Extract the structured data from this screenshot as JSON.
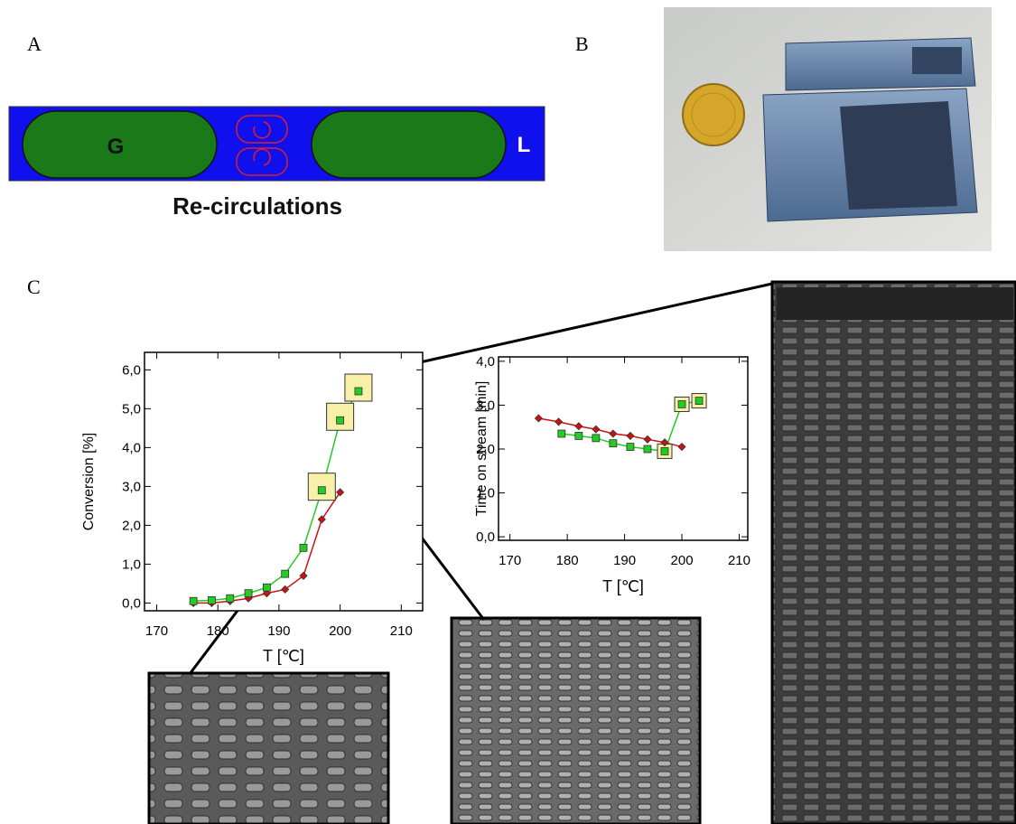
{
  "panels": {
    "a": {
      "label": "A",
      "gas": "G",
      "liquid": "L",
      "caption": "Re-circulations"
    },
    "b": {
      "label": "B"
    },
    "c": {
      "label": "C"
    }
  },
  "chart_data": [
    {
      "type": "line",
      "ylabel": "Conversion [%]",
      "xlabel": "T  [℃]",
      "xlim": [
        168,
        213.5
      ],
      "ylim": [
        -0.2,
        6.45
      ],
      "xticks": [
        170,
        180,
        190,
        200,
        210
      ],
      "yticks": [
        {
          "value": 0,
          "label": "0,0"
        },
        {
          "value": 1,
          "label": "1,0"
        },
        {
          "value": 2,
          "label": "2,0"
        },
        {
          "value": 3,
          "label": "3,0"
        },
        {
          "value": 4,
          "label": "4,0"
        },
        {
          "value": 5,
          "label": "5,0"
        },
        {
          "value": 6,
          "label": "6,0"
        }
      ],
      "series": [
        {
          "color": "#cc1111",
          "marker": "diamond",
          "x": [
            176,
            179,
            182,
            185,
            188,
            191,
            194,
            197,
            200
          ],
          "values": [
            0,
            0,
            0.05,
            0.12,
            0.25,
            0.35,
            0.7,
            2.15,
            2.85
          ]
        },
        {
          "color": "#22cc22",
          "marker": "square",
          "x": [
            176,
            179,
            182,
            185,
            188,
            191,
            194,
            197,
            200,
            203
          ],
          "values": [
            0.05,
            0.07,
            0.12,
            0.25,
            0.4,
            0.75,
            1.42,
            2.9,
            4.7,
            5.45
          ]
        }
      ]
    },
    {
      "type": "line",
      "ylabel": "Time on stream [min]",
      "xlabel": "T  [℃]",
      "xlim": [
        168,
        211.5
      ],
      "ylim": [
        -0.08,
        4.1
      ],
      "xticks": [
        170,
        180,
        190,
        200,
        210
      ],
      "yticks": [
        {
          "value": 0,
          "label": "0,0"
        },
        {
          "value": 1,
          "label": "1,0"
        },
        {
          "value": 2,
          "label": "2,0"
        },
        {
          "value": 3,
          "label": "3,0"
        },
        {
          "value": 4,
          "label": "4,0"
        }
      ],
      "series": [
        {
          "color": "#cc1111",
          "marker": "diamond",
          "x": [
            175,
            178.5,
            182,
            185,
            188,
            191,
            194,
            197,
            200
          ],
          "values": [
            2.7,
            2.62,
            2.52,
            2.45,
            2.35,
            2.3,
            2.22,
            2.15,
            2.05
          ]
        },
        {
          "color": "#22cc22",
          "marker": "square",
          "x": [
            179,
            182,
            185,
            188,
            191,
            194,
            197,
            200,
            203
          ],
          "values": [
            2.35,
            2.3,
            2.25,
            2.13,
            2.05,
            2.0,
            1.95,
            3.02,
            3.1
          ]
        }
      ]
    }
  ]
}
